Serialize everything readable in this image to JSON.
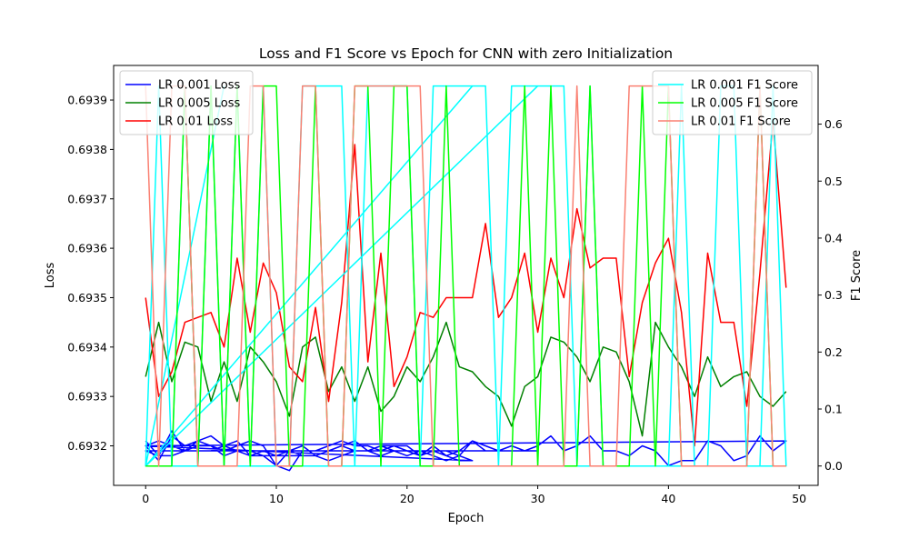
{
  "chart_data": {
    "type": "line",
    "title": "Loss and F1 Score vs Epoch for CNN with zero Initialization",
    "xlabel": "Epoch",
    "ylabel_left": "Loss",
    "ylabel_right": "F1 Score",
    "xlim": [
      -2.45,
      51.45
    ],
    "ylim_left": [
      0.69312,
      0.69397
    ],
    "ylim_right": [
      -0.034,
      0.703
    ],
    "x_ticks": [
      0,
      10,
      20,
      30,
      40,
      50
    ],
    "y_ticks_left": [
      0.6932,
      0.6933,
      0.6934,
      0.6935,
      0.6936,
      0.6937,
      0.6938,
      0.6939
    ],
    "y_ticks_left_labels": [
      "0.6932",
      "0.6933",
      "0.6934",
      "0.6935",
      "0.6936",
      "0.6937",
      "0.6938",
      "0.6939"
    ],
    "y_ticks_right": [
      0.0,
      0.1,
      0.2,
      0.3,
      0.4,
      0.5,
      0.6
    ],
    "y_ticks_right_labels": [
      "0.0",
      "0.1",
      "0.2",
      "0.3",
      "0.4",
      "0.5",
      "0.6"
    ],
    "legend_left": {
      "placement": "top-left",
      "entries": [
        "LR 0.001 Loss",
        "LR 0.005 Loss",
        "LR 0.01 Loss"
      ]
    },
    "legend_right": {
      "placement": "top-right",
      "entries": [
        "LR 0.001 F1 Score",
        "LR 0.005 F1 Score",
        "LR 0.01 F1 Score"
      ]
    },
    "series": [
      {
        "name": "LR 0.001 Loss",
        "axis": "left",
        "color": "#0000ff",
        "x": [
          0,
          1,
          2,
          3,
          4,
          5,
          6,
          7,
          8,
          9,
          10,
          11,
          12,
          13,
          14,
          15,
          16,
          17,
          18,
          19,
          20,
          21,
          22,
          23,
          24,
          25,
          26,
          27,
          28,
          29,
          30,
          31,
          32,
          33,
          34,
          35,
          36,
          37,
          38,
          39,
          40,
          41,
          42,
          43,
          44,
          45,
          46,
          47,
          48,
          49,
          0,
          1,
          2,
          3,
          4,
          5,
          6,
          7,
          8,
          9,
          10,
          11,
          12,
          13,
          14,
          15,
          16,
          17,
          18,
          19,
          20,
          21,
          22,
          23,
          24,
          25,
          26,
          27,
          28,
          29,
          30,
          0,
          1,
          2,
          3,
          4,
          5,
          6,
          7,
          8,
          9,
          10,
          11,
          12,
          13,
          14,
          15,
          16,
          17,
          18,
          19,
          20,
          21,
          22,
          23,
          24,
          25,
          0,
          1,
          2,
          3,
          4,
          5,
          6,
          7,
          8,
          9,
          10,
          11,
          12,
          13,
          14,
          15,
          16,
          17,
          18,
          19,
          20,
          21,
          22,
          23,
          24,
          25
        ],
        "y": [
          0.69321,
          0.69318,
          0.69323,
          0.69319,
          0.69321,
          0.6932,
          0.69319,
          0.6932,
          0.69321,
          0.6932,
          0.69316,
          0.69315,
          0.69319,
          0.69319,
          0.6932,
          0.69321,
          0.6932,
          0.6932,
          0.69319,
          0.6932,
          0.6932,
          0.69318,
          0.6932,
          0.69318,
          0.69319,
          0.69321,
          0.69319,
          0.69319,
          0.69319,
          0.69319,
          0.6932,
          0.69322,
          0.69319,
          0.6932,
          0.69322,
          0.69319,
          0.69319,
          0.69318,
          0.6932,
          0.69319,
          0.69316,
          0.69317,
          0.69317,
          0.69321,
          0.6932,
          0.69317,
          0.69318,
          0.69322,
          0.69319,
          0.69321,
          0.6932,
          0.69317,
          0.69322,
          0.6932,
          0.69321,
          0.69322,
          0.6932,
          0.69321,
          0.69318,
          0.69319,
          0.69318,
          0.69319,
          0.69318,
          0.69318,
          0.69319,
          0.6932,
          0.69321,
          0.69319,
          0.6932,
          0.6932,
          0.69319,
          0.69318,
          0.69319,
          0.69319,
          0.69318,
          0.69321,
          0.6932,
          0.69319,
          0.6932,
          0.69319,
          0.69319,
          0.69319,
          0.69318,
          0.69318,
          0.69319,
          0.6932,
          0.6932,
          0.69318,
          0.69319,
          0.69319,
          0.69318,
          0.69318,
          0.69318,
          0.69318,
          0.69318,
          0.69317,
          0.69318,
          0.69319,
          0.69319,
          0.69318,
          0.69319,
          0.69319,
          0.69318,
          0.69319,
          0.69318,
          0.69317,
          0.69317,
          0.6932,
          0.69321,
          0.6932,
          0.69319,
          0.69319,
          0.69319,
          0.6932,
          0.69319,
          0.69318,
          0.69318,
          0.69316,
          0.69319,
          0.6932,
          0.69318,
          0.69319,
          0.6932,
          0.69319,
          0.69319,
          0.6932,
          0.69319,
          0.69318,
          0.69319,
          0.69318,
          0.69317,
          0.69318,
          0.69317
        ]
      },
      {
        "name": "LR 0.005 Loss",
        "axis": "left",
        "color": "#008000",
        "x": [
          0,
          1,
          2,
          3,
          4,
          5,
          6,
          7,
          8,
          9,
          10,
          11,
          12,
          13,
          14,
          15,
          16,
          17,
          18,
          19,
          20,
          21,
          22,
          23,
          24,
          25,
          26,
          27,
          28,
          29,
          30,
          31,
          32,
          33,
          34,
          35,
          36,
          37,
          38,
          39,
          40,
          41,
          42,
          43,
          44,
          45,
          46,
          47,
          48,
          49
        ],
        "y": [
          0.69334,
          0.69345,
          0.69333,
          0.69341,
          0.6934,
          0.69329,
          0.69337,
          0.69329,
          0.6934,
          0.69337,
          0.69333,
          0.69326,
          0.6934,
          0.69342,
          0.69331,
          0.69336,
          0.69329,
          0.69336,
          0.69327,
          0.6933,
          0.69336,
          0.69333,
          0.69338,
          0.69345,
          0.69336,
          0.69335,
          0.69332,
          0.6933,
          0.69324,
          0.69332,
          0.69334,
          0.69342,
          0.69341,
          0.69338,
          0.69333,
          0.6934,
          0.69339,
          0.69333,
          0.69322,
          0.69345,
          0.6934,
          0.69336,
          0.6933,
          0.69338,
          0.69332,
          0.69334,
          0.69335,
          0.6933,
          0.69328,
          0.69331
        ]
      },
      {
        "name": "LR 0.01 Loss",
        "axis": "left",
        "color": "#ff0000",
        "x": [
          0,
          1,
          2,
          3,
          4,
          5,
          6,
          7,
          8,
          9,
          10,
          11,
          12,
          13,
          14,
          15,
          16,
          17,
          18,
          19,
          20,
          21,
          22,
          23,
          24,
          25,
          26,
          27,
          28,
          29,
          30,
          31,
          32,
          33,
          34,
          35,
          36,
          37,
          38,
          39,
          40,
          41,
          42,
          43,
          44,
          45,
          46,
          47,
          48,
          49
        ],
        "y": [
          0.6935,
          0.6933,
          0.69335,
          0.69345,
          0.69346,
          0.69347,
          0.6934,
          0.69358,
          0.69343,
          0.69357,
          0.69351,
          0.69336,
          0.69333,
          0.69348,
          0.69329,
          0.69349,
          0.69381,
          0.69337,
          0.69359,
          0.69332,
          0.69338,
          0.69347,
          0.69346,
          0.6935,
          0.6935,
          0.6935,
          0.69365,
          0.69346,
          0.6935,
          0.69359,
          0.69343,
          0.69358,
          0.6935,
          0.69368,
          0.69356,
          0.69358,
          0.69358,
          0.69334,
          0.69349,
          0.69357,
          0.69362,
          0.69347,
          0.6932,
          0.69359,
          0.69345,
          0.69345,
          0.69328,
          0.69355,
          0.69386,
          0.69352
        ]
      },
      {
        "name": "LR 0.001 F1 Score",
        "axis": "right",
        "color": "#00ffff",
        "x": [
          0,
          1,
          2,
          3,
          4,
          5,
          6,
          7,
          8,
          9,
          10,
          11,
          12,
          13,
          14,
          15,
          16,
          17,
          18,
          19,
          20,
          21,
          22,
          23,
          24,
          25,
          26,
          27,
          28,
          29,
          30,
          31,
          32,
          33,
          34,
          35,
          36,
          37,
          38,
          39,
          40,
          41,
          42,
          43,
          44,
          45,
          46,
          47,
          48,
          49,
          0,
          25,
          0,
          30,
          0,
          6
        ],
        "y": [
          0.0,
          0.667,
          0.0,
          0.667,
          0.0,
          0.667,
          0.0,
          0.667,
          0.0,
          0.667,
          0.0,
          0.0,
          0.667,
          0.667,
          0.667,
          0.667,
          0.0,
          0.667,
          0.667,
          0.667,
          0.667,
          0.0,
          0.667,
          0.667,
          0.667,
          0.667,
          0.667,
          0.0,
          0.667,
          0.667,
          0.667,
          0.667,
          0.667,
          0.0,
          0.667,
          0.0,
          0.0,
          0.0,
          0.0,
          0.0,
          0.0,
          0.667,
          0.0,
          0.0,
          0.667,
          0.667,
          0.0,
          0.0,
          0.667,
          0.0,
          0.0,
          0.667,
          0.0,
          0.667,
          0.0,
          0.667
        ]
      },
      {
        "name": "LR 0.005 F1 Score",
        "axis": "right",
        "color": "#00ff00",
        "x": [
          0,
          1,
          2,
          3,
          4,
          5,
          6,
          7,
          8,
          9,
          10,
          11,
          12,
          13,
          14,
          15,
          16,
          17,
          18,
          19,
          20,
          21,
          22,
          23,
          24,
          25,
          26,
          27,
          28,
          29,
          30,
          31,
          32,
          33,
          34,
          35,
          36,
          37,
          38,
          39,
          40,
          41,
          42,
          43,
          44,
          45,
          46,
          47,
          48,
          49
        ],
        "y": [
          0.0,
          0.0,
          0.0,
          0.667,
          0.0,
          0.667,
          0.0,
          0.667,
          0.0,
          0.667,
          0.667,
          0.0,
          0.0,
          0.667,
          0.0,
          0.0,
          0.667,
          0.667,
          0.0,
          0.667,
          0.667,
          0.0,
          0.0,
          0.667,
          0.0,
          0.0,
          0.0,
          0.0,
          0.0,
          0.667,
          0.0,
          0.667,
          0.0,
          0.0,
          0.667,
          0.0,
          0.0,
          0.0,
          0.667,
          0.0,
          0.667,
          0.0,
          0.0,
          0.0,
          0.0,
          0.0,
          0.0,
          0.667,
          0.0,
          0.0
        ]
      },
      {
        "name": "LR 0.01 F1 Score",
        "axis": "right",
        "color": "#fa8072",
        "x": [
          0,
          1,
          2,
          3,
          4,
          5,
          6,
          7,
          8,
          9,
          10,
          11,
          12,
          13,
          14,
          15,
          16,
          17,
          18,
          19,
          20,
          21,
          22,
          23,
          24,
          25,
          26,
          27,
          28,
          29,
          30,
          31,
          32,
          33,
          34,
          35,
          36,
          37,
          38,
          39,
          40,
          41,
          42,
          43,
          44,
          45,
          46,
          47,
          48,
          49
        ],
        "y": [
          0.667,
          0.0,
          0.667,
          0.667,
          0.0,
          0.0,
          0.0,
          0.0,
          0.667,
          0.667,
          0.0,
          0.0,
          0.667,
          0.667,
          0.0,
          0.0,
          0.667,
          0.667,
          0.667,
          0.667,
          0.667,
          0.667,
          0.0,
          0.0,
          0.0,
          0.0,
          0.0,
          0.0,
          0.0,
          0.0,
          0.0,
          0.0,
          0.0,
          0.667,
          0.0,
          0.0,
          0.0,
          0.667,
          0.667,
          0.667,
          0.667,
          0.0,
          0.0,
          0.0,
          0.0,
          0.0,
          0.0,
          0.667,
          0.0,
          0.0
        ]
      }
    ]
  }
}
